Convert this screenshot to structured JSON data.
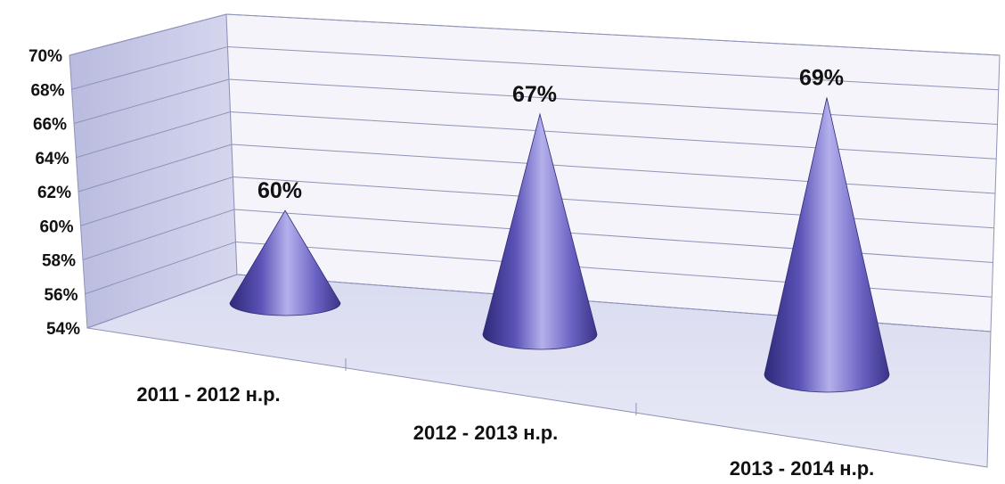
{
  "chart_data": {
    "type": "bar",
    "style": "3d-cone",
    "categories": [
      "2011 - 2012 н.р.",
      "2012 - 2013 н.р.",
      "2013 - 2014 н.р."
    ],
    "values": [
      60,
      67,
      69
    ],
    "data_labels": [
      "60%",
      "67%",
      "69%"
    ],
    "y_ticks": [
      "54%",
      "56%",
      "58%",
      "60%",
      "62%",
      "64%",
      "66%",
      "68%",
      "70%"
    ],
    "ylim": [
      54,
      70
    ],
    "y_unit": "%",
    "grid": true,
    "legend": "none",
    "title": "",
    "xlabel": "",
    "ylabel": ""
  },
  "colors": {
    "cone": "#6a62c2",
    "cone_dark": "#2e2a78",
    "cone_light": "#b4b0ec",
    "wall": "#c9cbe6",
    "floor": "#dfe1f1",
    "grid": "#8f93b8"
  }
}
